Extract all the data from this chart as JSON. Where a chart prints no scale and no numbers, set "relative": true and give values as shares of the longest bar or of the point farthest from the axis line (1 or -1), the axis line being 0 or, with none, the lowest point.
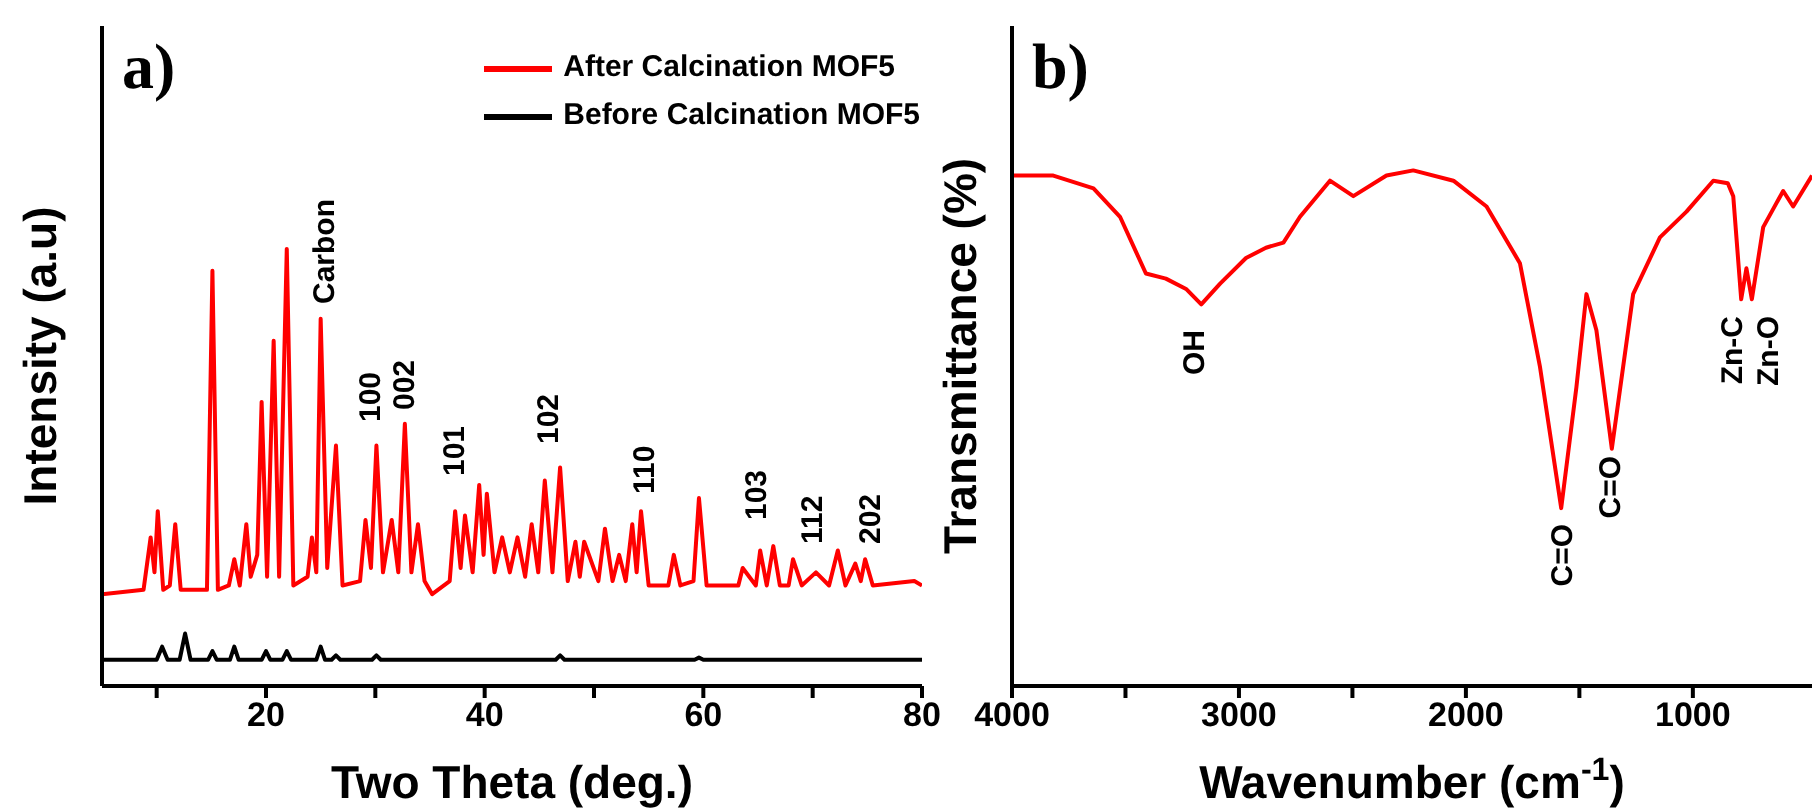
{
  "chart_data": [
    {
      "type": "line",
      "title": "a)",
      "xlabel": "Two Theta (deg.)",
      "ylabel": "Intensity (a.u)",
      "relative": true,
      "legend": "top right",
      "xlim": [
        5,
        80
      ],
      "xticks": [
        {
          "value": 10,
          "label": null
        },
        20,
        {
          "value": 30,
          "label": null
        },
        40,
        {
          "value": 50,
          "label": null
        },
        60,
        {
          "value": 70,
          "label": null
        },
        80
      ],
      "series": [
        {
          "name": "After Calcination MOF5",
          "color": "#ff0000",
          "x": [
            5,
            8.8,
            9.45,
            9.8,
            10.1,
            10.6,
            11.2,
            11.7,
            12.2,
            14.6,
            15.1,
            15.6,
            16.6,
            17.1,
            17.6,
            18.2,
            18.6,
            19.2,
            19.6,
            20.1,
            20.7,
            21.2,
            21.9,
            22.5,
            23.8,
            24.2,
            24.6,
            25.0,
            25.6,
            26.4,
            27.0,
            28.6,
            29.1,
            29.6,
            30.1,
            30.7,
            31.5,
            32.1,
            32.7,
            33.3,
            33.9,
            34.5,
            35.2,
            36.8,
            37.3,
            37.8,
            38.2,
            38.9,
            39.5,
            39.9,
            40.2,
            40.9,
            41.6,
            42.3,
            43.0,
            43.7,
            44.3,
            44.9,
            45.5,
            46.2,
            46.9,
            47.6,
            48.3,
            48.7,
            49.1,
            50.4,
            51.0,
            51.7,
            52.3,
            52.9,
            53.5,
            53.9,
            54.3,
            55.0,
            56.8,
            57.3,
            57.9,
            59.1,
            59.6,
            60.3,
            63.2,
            63.6,
            64.8,
            65.2,
            65.8,
            66.4,
            67.0,
            67.8,
            68.2,
            69.0,
            70.3,
            71.5,
            72.3,
            73.0,
            73.9,
            74.4,
            74.8,
            75.5,
            79.3,
            80
          ],
          "values": [
            0.21,
            0.22,
            0.34,
            0.26,
            0.4,
            0.22,
            0.23,
            0.37,
            0.22,
            0.22,
            0.95,
            0.22,
            0.23,
            0.29,
            0.23,
            0.37,
            0.25,
            0.3,
            0.65,
            0.25,
            0.79,
            0.25,
            1.0,
            0.23,
            0.25,
            0.34,
            0.26,
            0.84,
            0.27,
            0.55,
            0.23,
            0.24,
            0.38,
            0.27,
            0.55,
            0.26,
            0.38,
            0.26,
            0.6,
            0.26,
            0.37,
            0.24,
            0.21,
            0.24,
            0.4,
            0.27,
            0.39,
            0.26,
            0.46,
            0.3,
            0.44,
            0.26,
            0.34,
            0.26,
            0.34,
            0.25,
            0.37,
            0.26,
            0.47,
            0.26,
            0.5,
            0.24,
            0.33,
            0.25,
            0.33,
            0.24,
            0.36,
            0.24,
            0.3,
            0.24,
            0.37,
            0.26,
            0.4,
            0.23,
            0.23,
            0.3,
            0.23,
            0.24,
            0.43,
            0.23,
            0.23,
            0.27,
            0.23,
            0.31,
            0.23,
            0.32,
            0.23,
            0.23,
            0.29,
            0.23,
            0.26,
            0.23,
            0.31,
            0.23,
            0.28,
            0.24,
            0.29,
            0.23,
            0.24,
            0.23
          ]
        },
        {
          "name": "Before Calcination MOF5",
          "color": "#000000",
          "x": [
            5,
            10.0,
            10.5,
            11.0,
            12.1,
            12.6,
            13.1,
            14.7,
            15.1,
            15.5,
            16.7,
            17.1,
            17.5,
            19.6,
            20.0,
            20.4,
            21.5,
            21.9,
            22.3,
            24.6,
            25.0,
            25.4,
            26.0,
            26.4,
            26.8,
            29.7,
            30.1,
            30.5,
            46.5,
            46.9,
            47.3,
            59.2,
            59.6,
            60.0,
            80
          ],
          "values": [
            0.06,
            0.06,
            0.09,
            0.06,
            0.06,
            0.12,
            0.06,
            0.06,
            0.08,
            0.06,
            0.06,
            0.09,
            0.06,
            0.06,
            0.08,
            0.06,
            0.06,
            0.08,
            0.06,
            0.06,
            0.09,
            0.06,
            0.06,
            0.07,
            0.06,
            0.06,
            0.07,
            0.06,
            0.06,
            0.07,
            0.06,
            0.06,
            0.065,
            0.06,
            0.06
          ]
        }
      ],
      "annotations": [
        "Carbon",
        "100",
        "002",
        "101",
        "102",
        "110",
        "103",
        "112",
        "202"
      ]
    },
    {
      "type": "line",
      "title": "b)",
      "xlabel": "Wavenumber (cm$^{-1}$)",
      "ylabel": "Transmittance (%)",
      "relative": true,
      "xlim": [
        4000,
        475
      ],
      "xticks": [
        4000,
        {
          "value": 3500,
          "label": null
        },
        3000,
        {
          "value": 2500,
          "label": null
        },
        2000,
        {
          "value": 1500,
          "label": null
        },
        1000
      ],
      "series": [
        {
          "color": "#ff0000",
          "x": [
            4000,
            3818,
            3641,
            3524,
            3410,
            3322,
            3233,
            3166,
            3084,
            2969,
            2881,
            2804,
            2731,
            2599,
            2496,
            2350,
            2232,
            2055,
            1909,
            1762,
            1674,
            1580,
            1513,
            1469,
            1425,
            1357,
            1263,
            1145,
            1028,
            910,
            846,
            822,
            787,
            764,
            740,
            690,
            602,
            558,
            475
          ],
          "values": [
            0.99,
            0.99,
            0.965,
            0.91,
            0.8,
            0.79,
            0.77,
            0.74,
            0.78,
            0.83,
            0.85,
            0.86,
            0.91,
            0.98,
            0.95,
            0.99,
            1.0,
            0.98,
            0.93,
            0.82,
            0.62,
            0.345,
            0.58,
            0.76,
            0.69,
            0.46,
            0.76,
            0.87,
            0.92,
            0.98,
            0.975,
            0.95,
            0.75,
            0.81,
            0.75,
            0.89,
            0.96,
            0.93,
            0.99
          ]
        }
      ],
      "annotations": [
        "OH",
        "C=O",
        "C=O",
        "Zn-C",
        "Zn-O"
      ]
    }
  ]
}
